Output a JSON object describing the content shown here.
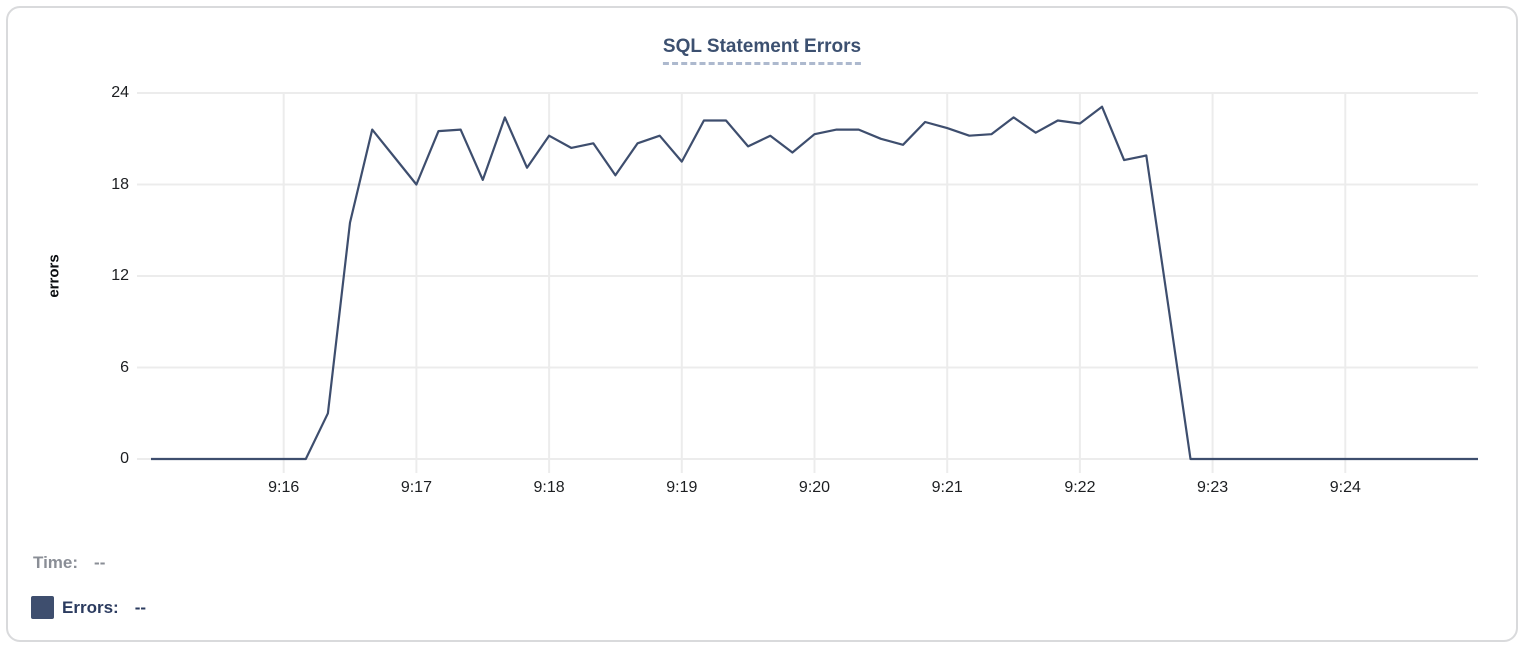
{
  "title": "SQL Statement Errors",
  "y_axis": {
    "label": "errors",
    "ticks": [
      24,
      18,
      12,
      6,
      0
    ]
  },
  "x_axis": {
    "tick_labels": [
      "9:16",
      "9:17",
      "9:18",
      "9:19",
      "9:20",
      "9:21",
      "9:22",
      "9:23",
      "9:24"
    ]
  },
  "legend": {
    "time_label": "Time:",
    "time_value": "--",
    "errors_label": "Errors:",
    "errors_value": "--"
  },
  "colors": {
    "line": "#3E4E6E",
    "swatch": "#3E4E6E",
    "title": "#3C5070",
    "title_underline": "#ADB9CE",
    "grid": "#ECECEC",
    "tick_label": "#1C1E21",
    "legend_time_text": "#8A8E96",
    "legend_errors_text": "#2B3B5F",
    "card_border": "#D9DADC"
  },
  "chart_data": {
    "type": "line",
    "title": "SQL Statement Errors",
    "xlabel": "",
    "ylabel": "errors",
    "ylim": [
      0,
      24
    ],
    "y_grid_values": [
      0,
      6,
      12,
      18,
      24
    ],
    "grid": true,
    "legend_position": "bottom-left",
    "x_start_time": "9:15:00",
    "x_end_time": "9:25:00",
    "x_step_seconds": 10,
    "x_tick_seconds": [
      60,
      120,
      180,
      240,
      300,
      360,
      420,
      480,
      540
    ],
    "x_tick_labels": [
      "9:16",
      "9:17",
      "9:18",
      "9:19",
      "9:20",
      "9:21",
      "9:22",
      "9:23",
      "9:24"
    ],
    "series": [
      {
        "name": "Errors",
        "color": "#3E4E6E",
        "values": [
          0,
          0,
          0,
          0,
          0,
          0,
          0,
          0,
          3,
          15.5,
          21.6,
          19.8,
          18,
          21.5,
          21.6,
          18.3,
          22.4,
          19.1,
          21.2,
          20.4,
          20.7,
          18.6,
          20.7,
          21.2,
          19.5,
          22.2,
          22.2,
          20.5,
          21.2,
          20.1,
          21.3,
          21.6,
          21.6,
          21,
          20.6,
          22.1,
          21.7,
          21.2,
          21.3,
          22.4,
          21.4,
          22.2,
          22,
          23.1,
          19.6,
          19.9,
          10,
          0,
          0,
          0,
          0,
          0,
          0,
          0,
          0,
          0,
          0,
          0,
          0,
          0,
          0
        ]
      }
    ]
  }
}
